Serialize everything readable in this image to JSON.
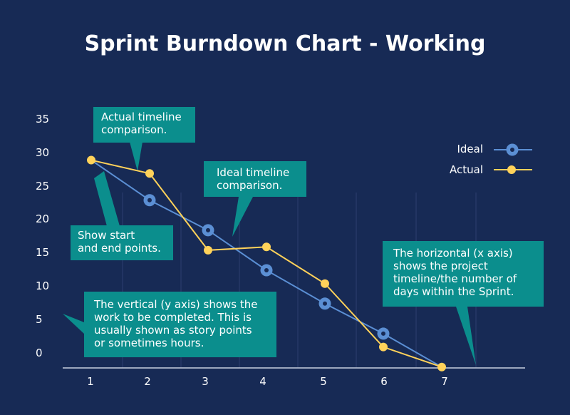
{
  "chart_data": {
    "type": "line",
    "title": "Sprint Burndown Chart - Working",
    "categories": [
      "1",
      "2",
      "3",
      "4",
      "5",
      "6",
      "7"
    ],
    "y_ticks": [
      "35",
      "30",
      "25",
      "20",
      "15",
      "10",
      "5",
      "0"
    ],
    "ylim": [
      0,
      35
    ],
    "xlim": [
      1,
      7
    ],
    "grid": true,
    "legend_position": "top-right",
    "series": [
      {
        "name": "Ideal",
        "color": "#5b8fd4",
        "x": [
          1,
          2,
          3,
          4,
          5,
          6,
          7
        ],
        "y": [
          29,
          23,
          18.5,
          12.5,
          7.5,
          3,
          -2
        ]
      },
      {
        "name": "Actual",
        "color": "#ffd25a",
        "x": [
          1,
          2,
          3,
          4,
          5,
          6,
          7
        ],
        "y": [
          29,
          27,
          15.5,
          16,
          10.5,
          1,
          -2
        ]
      }
    ],
    "annotations": [
      {
        "id": "actual",
        "lines": [
          "Actual timeline",
          "comparison."
        ]
      },
      {
        "id": "ideal",
        "lines": [
          "Ideal timeline",
          "comparison."
        ]
      },
      {
        "id": "start",
        "lines": [
          "Show start",
          "and end points."
        ]
      },
      {
        "id": "yaxis",
        "lines": [
          "The vertical (y axis) shows the",
          "work to be completed. This is",
          "usually shown as story points",
          "or sometimes hours."
        ]
      },
      {
        "id": "xaxis",
        "lines": [
          "The horizontal (x axis)",
          "shows the project",
          "timeline/the number of",
          "days within the Sprint."
        ]
      }
    ]
  }
}
